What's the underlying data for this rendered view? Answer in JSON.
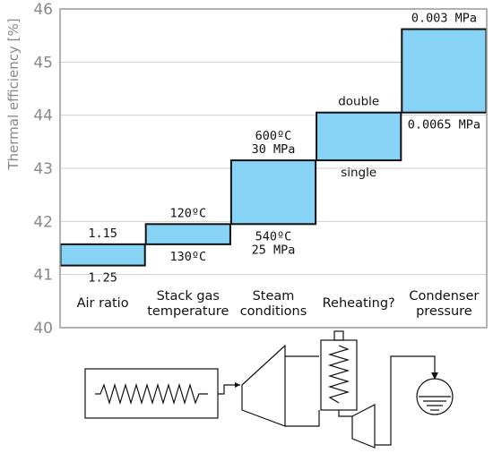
{
  "chart_data": {
    "type": "waterfall",
    "ylabel": "Thermal efficiency [%]",
    "ylim": [
      40,
      46
    ],
    "yticks": [
      40,
      41,
      42,
      43,
      44,
      45,
      46
    ],
    "grid": true,
    "categories": [
      "Air ratio",
      "Stack gas temperature",
      "Steam conditions",
      "Reheating?",
      "Condenser pressure"
    ],
    "category_labels": [
      [
        "Air ratio"
      ],
      [
        "Stack gas",
        "temperature"
      ],
      [
        "Steam",
        "conditions"
      ],
      [
        "Reheating?"
      ],
      [
        "Condenser",
        "pressure"
      ]
    ],
    "bars": [
      {
        "category": "Air ratio",
        "low": 41.17,
        "high": 41.57,
        "top_label": [
          "1.15"
        ],
        "bottom_label": [
          "1.25"
        ]
      },
      {
        "category": "Stack gas temperature",
        "low": 41.57,
        "high": 41.95,
        "top_label": [
          "120ºC"
        ],
        "bottom_label": [
          "130ºC"
        ]
      },
      {
        "category": "Steam conditions",
        "low": 41.95,
        "high": 43.15,
        "top_label": [
          "600ºC",
          "30 MPa"
        ],
        "bottom_label": [
          "540ºC",
          "25 MPa"
        ]
      },
      {
        "category": "Reheating?",
        "low": 43.15,
        "high": 44.05,
        "top_label": [
          "double"
        ],
        "bottom_label": [
          "single"
        ]
      },
      {
        "category": "Condenser pressure",
        "low": 44.05,
        "high": 45.62,
        "top_label": [
          "0.003 MPa"
        ],
        "bottom_label": [
          "0.0065 MPa"
        ]
      }
    ]
  }
}
